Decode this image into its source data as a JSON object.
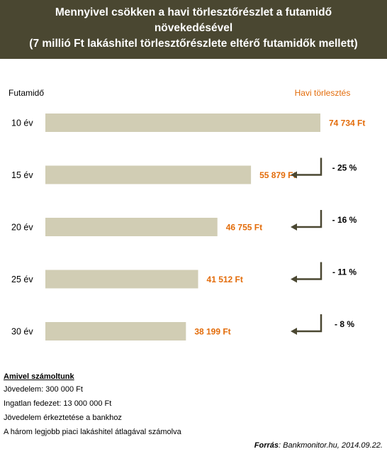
{
  "header": {
    "line1": "Mennyivel csökken a havi törlesztőrészlet a futamidő",
    "line2": "növekedésével",
    "line3": "(7 millió Ft lakáshitel törlesztőrészlete eltérő futamidők mellett)"
  },
  "chart_data": {
    "type": "bar",
    "orientation": "horizontal",
    "title": "Mennyivel csökken a havi törlesztőrészlet a futamidő növekedésével (7 millió Ft lakáshitel törlesztőrészlete eltérő futamidők mellett)",
    "ylabel": "Futamidő",
    "xlabel": "Havi törlesztés",
    "categories": [
      "10 év",
      "15 év",
      "20 év",
      "25 év",
      "30 év"
    ],
    "values": [
      74734,
      55879,
      46755,
      41512,
      38199
    ],
    "value_labels": [
      "74 734 Ft",
      "55 879 Ft",
      "46 755 Ft",
      "41 512 Ft",
      "38 199 Ft"
    ],
    "changes": [
      "- 25 %",
      "- 16 %",
      "- 11 %",
      "- 8 %"
    ],
    "xlim": [
      0,
      74734
    ],
    "grid": false,
    "legend": "none",
    "bar_color": "#d1cdb4",
    "label_color": "#e36c0a",
    "arrow_color": "#4a4731"
  },
  "notes": {
    "heading": "Amivel számoltunk",
    "lines": [
      "Jövedelem: 300 000 Ft",
      "Ingatlan fedezet: 13 000 000 Ft",
      "Jövedelem érkeztetése a bankhoz",
      "A három legjobb piaci lakáshitel átlagával számolva"
    ]
  },
  "source": {
    "label": "Forrás",
    "text": ": Bankmonitor.hu, 2014.09.22."
  }
}
